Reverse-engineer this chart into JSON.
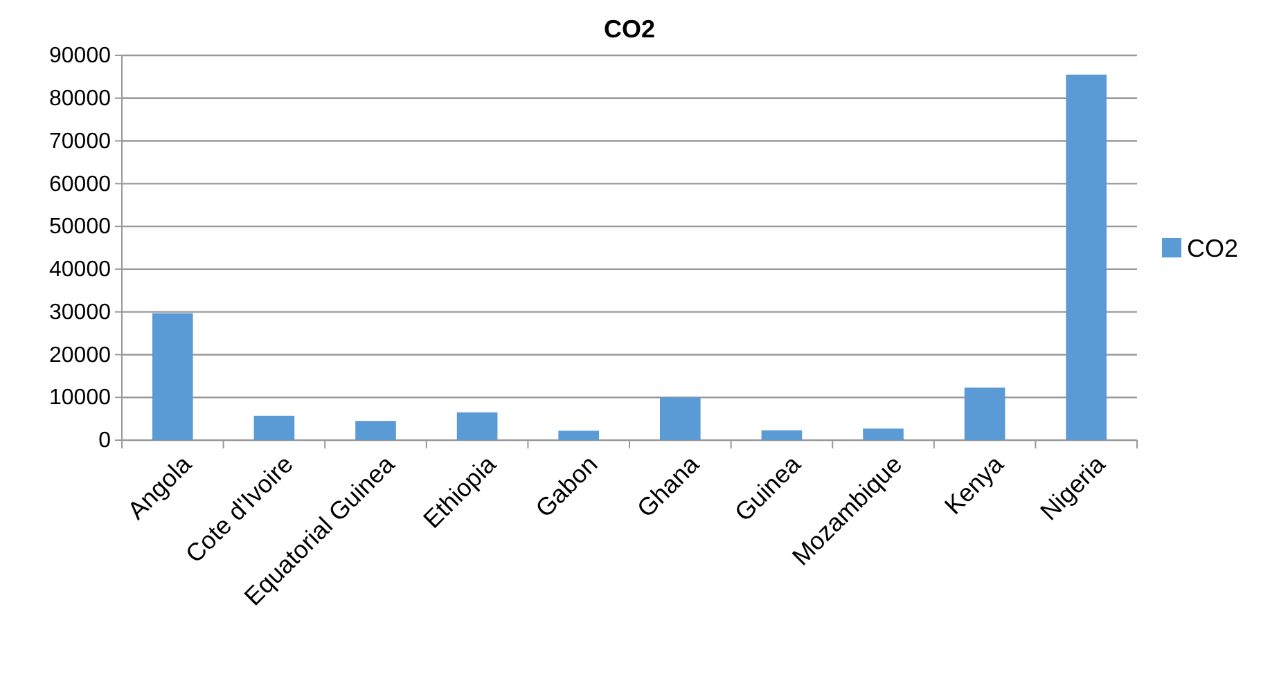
{
  "chart_data": {
    "type": "bar",
    "title": "CO2",
    "categories": [
      "Angola",
      "Cote d'Ivoire",
      "Equatorial Guinea",
      "Ethiopia",
      "Gabon",
      "Ghana",
      "Guinea",
      "Mozambique",
      "Kenya",
      "Nigeria"
    ],
    "series": [
      {
        "name": "CO2",
        "color": "#5b9bd5",
        "values": [
          29700,
          5700,
          4500,
          6500,
          2200,
          10000,
          2300,
          2700,
          12300,
          85500
        ]
      }
    ],
    "ylim": [
      0,
      90000
    ],
    "yticks": [
      0,
      10000,
      20000,
      30000,
      40000,
      50000,
      60000,
      70000,
      80000,
      90000
    ],
    "grid": "y",
    "legend": "right"
  }
}
